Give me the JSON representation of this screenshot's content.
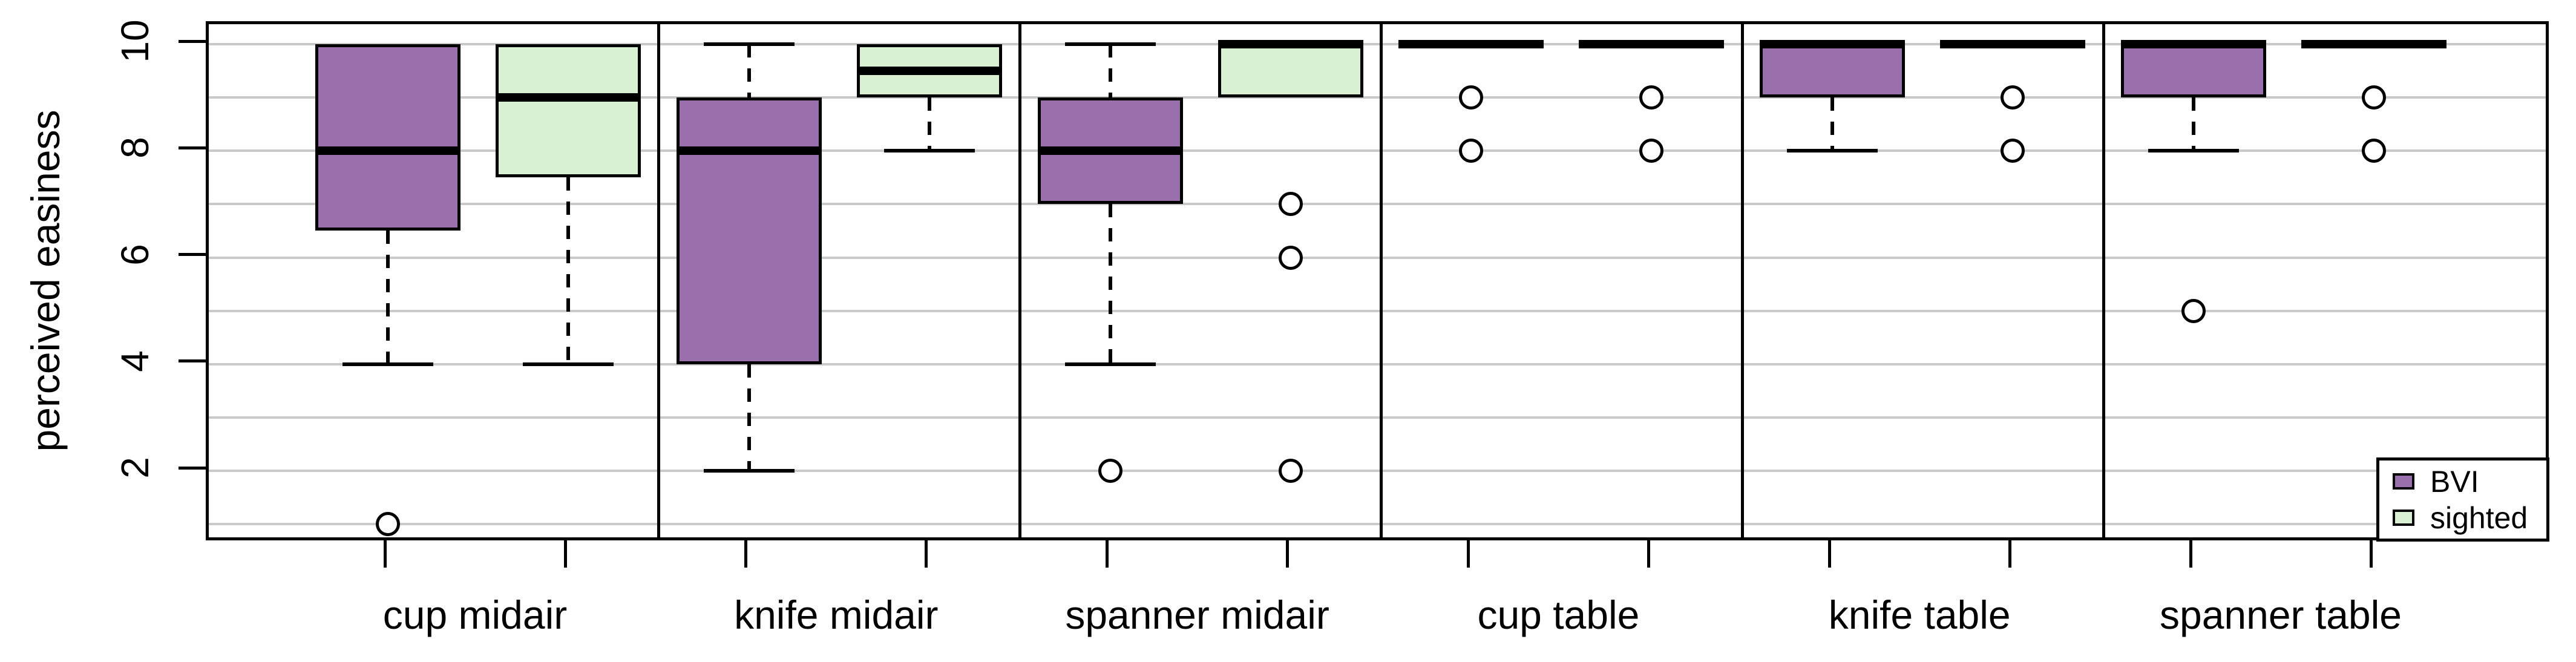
{
  "chart_data": {
    "type": "boxplot",
    "title": "",
    "xlabel": "",
    "ylabel": "perceived easiness",
    "ylim": [
      0.6,
      10.4
    ],
    "yticks": [
      2,
      4,
      6,
      8,
      10
    ],
    "gridlines_at": [
      1,
      2,
      3,
      4,
      5,
      6,
      7,
      8,
      9,
      10
    ],
    "grid": "horizontal light-gray lines at every integer",
    "categories": [
      "cup midair",
      "knife midair",
      "spanner midair",
      "cup table",
      "knife table",
      "spanner table"
    ],
    "panels": "each category drawn in its own bordered panel, BVI box left and sighted box right",
    "series": [
      {
        "name": "BVI",
        "color": "#9970AB",
        "boxes": [
          {
            "category": "cup midair",
            "q1": 6.5,
            "median": 8,
            "q3": 10,
            "whisker_low": 4,
            "whisker_high": 10,
            "outliers": [
              1
            ]
          },
          {
            "category": "knife midair",
            "q1": 4,
            "median": 8,
            "q3": 9,
            "whisker_low": 2,
            "whisker_high": 10,
            "outliers": []
          },
          {
            "category": "spanner midair",
            "q1": 7,
            "median": 8,
            "q3": 9,
            "whisker_low": 4,
            "whisker_high": 10,
            "outliers": [
              2
            ]
          },
          {
            "category": "cup table",
            "q1": 10,
            "median": 10,
            "q3": 10,
            "whisker_low": 10,
            "whisker_high": 10,
            "outliers": [
              9,
              8
            ]
          },
          {
            "category": "knife table",
            "q1": 9,
            "median": 10,
            "q3": 10,
            "whisker_low": 8,
            "whisker_high": 10,
            "outliers": []
          },
          {
            "category": "spanner table",
            "q1": 9,
            "median": 10,
            "q3": 10,
            "whisker_low": 8,
            "whisker_high": 10,
            "outliers": [
              5
            ]
          }
        ]
      },
      {
        "name": "sighted",
        "color": "#D9F0D3",
        "boxes": [
          {
            "category": "cup midair",
            "q1": 7.5,
            "median": 9,
            "q3": 10,
            "whisker_low": 4,
            "whisker_high": 10,
            "outliers": []
          },
          {
            "category": "knife midair",
            "q1": 9,
            "median": 9.5,
            "q3": 10,
            "whisker_low": 8,
            "whisker_high": 10,
            "outliers": []
          },
          {
            "category": "spanner midair",
            "q1": 9,
            "median": 10,
            "q3": 10,
            "whisker_low": 9,
            "whisker_high": 10,
            "outliers": [
              7,
              6,
              2
            ]
          },
          {
            "category": "cup table",
            "q1": 10,
            "median": 10,
            "q3": 10,
            "whisker_low": 10,
            "whisker_high": 10,
            "outliers": [
              9,
              8
            ]
          },
          {
            "category": "knife table",
            "q1": 10,
            "median": 10,
            "q3": 10,
            "whisker_low": 10,
            "whisker_high": 10,
            "outliers": [
              9,
              8
            ]
          },
          {
            "category": "spanner table",
            "q1": 10,
            "median": 10,
            "q3": 10,
            "whisker_low": 10,
            "whisker_high": 10,
            "outliers": [
              9,
              8
            ]
          }
        ]
      }
    ],
    "legend": {
      "position": "bottom-right",
      "items": [
        {
          "label": "BVI",
          "color": "#9970AB"
        },
        {
          "label": "sighted",
          "color": "#D9F0D3"
        }
      ]
    },
    "colors": {
      "box_border": "#000000",
      "median_line": "#000000",
      "gridline": "#c9c9c9",
      "background": "#ffffff"
    }
  }
}
